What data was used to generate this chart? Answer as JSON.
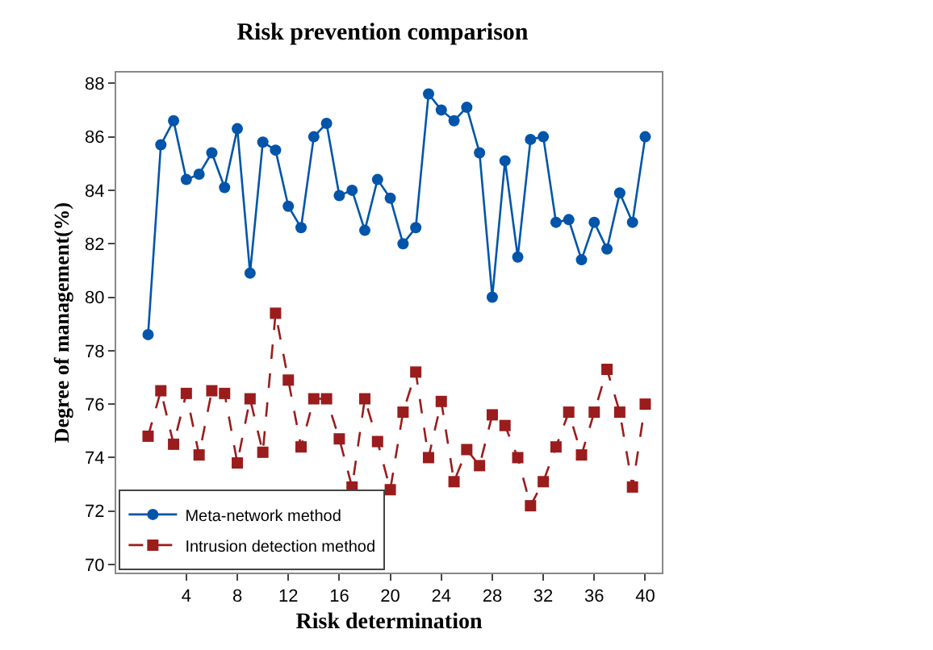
{
  "chart_data": {
    "type": "line",
    "title": "Risk prevention comparison",
    "xlabel": "Risk determination",
    "ylabel": "Degree of management(%)",
    "x": [
      1,
      2,
      3,
      4,
      5,
      6,
      7,
      8,
      9,
      10,
      11,
      12,
      13,
      14,
      15,
      16,
      17,
      18,
      19,
      20,
      21,
      22,
      23,
      24,
      25,
      26,
      27,
      28,
      29,
      30,
      31,
      32,
      33,
      34,
      35,
      36,
      37,
      38,
      39,
      40
    ],
    "series": [
      {
        "name": "Meta-network method",
        "color": "#0055aa",
        "marker": "circle",
        "line_style": "solid",
        "values": [
          78.6,
          85.7,
          86.6,
          84.4,
          84.6,
          85.4,
          84.1,
          86.3,
          80.9,
          85.8,
          85.5,
          83.4,
          82.6,
          86.0,
          86.5,
          83.8,
          84.0,
          82.5,
          84.4,
          83.7,
          82.0,
          82.6,
          87.6,
          87.0,
          86.6,
          87.1,
          85.4,
          80.0,
          85.1,
          81.5,
          85.9,
          86.0,
          82.8,
          82.9,
          81.4,
          82.8,
          81.8,
          83.9,
          82.8,
          86.0
        ]
      },
      {
        "name": "Intrusion detection method",
        "color": "#9b1c1c",
        "marker": "square",
        "line_style": "dashed",
        "values": [
          74.8,
          76.5,
          74.5,
          76.4,
          74.1,
          76.5,
          76.4,
          73.8,
          76.2,
          74.2,
          79.4,
          76.9,
          74.4,
          76.2,
          76.2,
          74.7,
          72.9,
          76.2,
          74.6,
          72.8,
          75.7,
          77.2,
          74.0,
          76.1,
          73.1,
          74.3,
          73.7,
          75.6,
          75.2,
          74.0,
          72.2,
          73.1,
          74.4,
          75.7,
          74.1,
          75.7,
          77.3,
          75.7,
          72.9,
          76.0
        ]
      }
    ],
    "xlim": [
      -1.5,
      41.3
    ],
    "xticks": [
      4,
      8,
      12,
      16,
      20,
      24,
      28,
      32,
      36,
      40
    ],
    "ylim": [
      69.7,
      88.4
    ],
    "yticks": [
      70,
      72,
      74,
      76,
      78,
      80,
      82,
      84,
      86,
      88
    ],
    "grid": false,
    "legend": "bottom left"
  }
}
